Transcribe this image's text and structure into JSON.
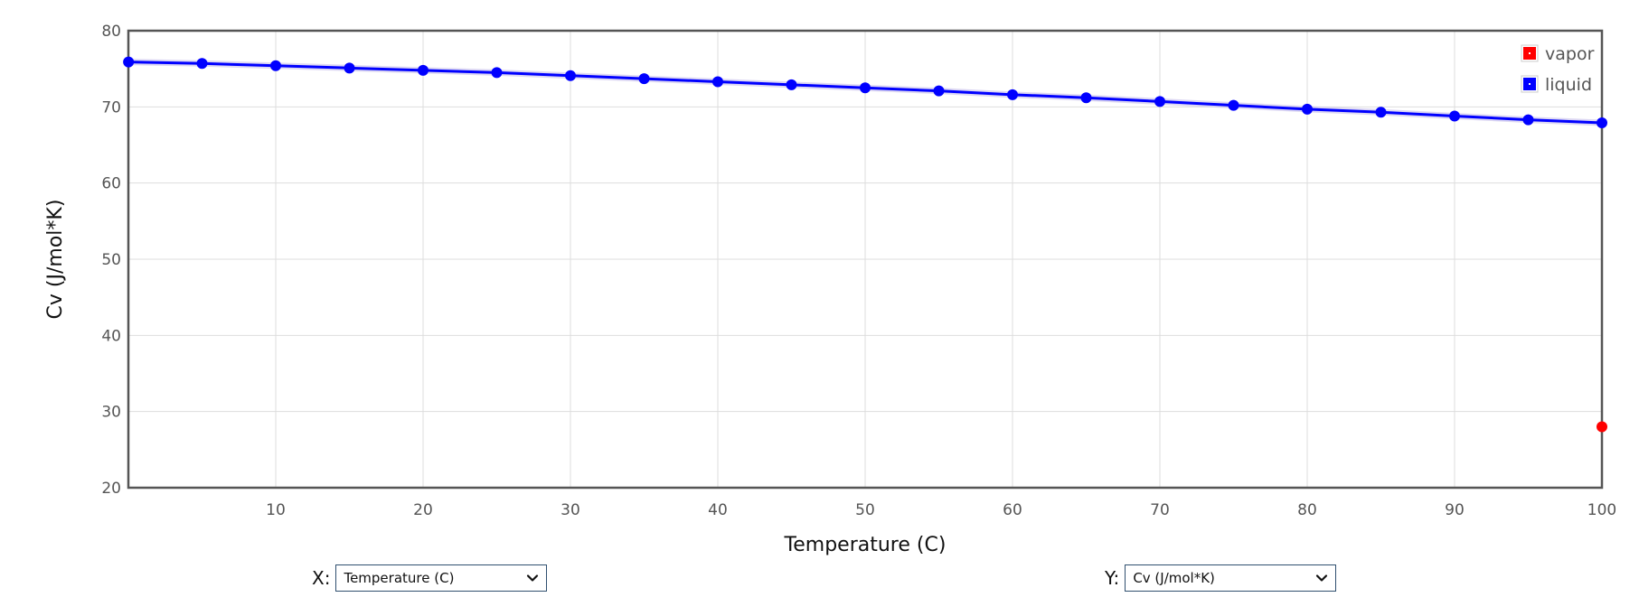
{
  "chart_data": {
    "type": "line",
    "xlabel": "Temperature (C)",
    "ylabel": "Cv (J/mol*K)",
    "xlim": [
      0,
      100
    ],
    "ylim": [
      20,
      80
    ],
    "x_ticks": [
      10,
      20,
      30,
      40,
      50,
      60,
      70,
      80,
      90,
      100
    ],
    "y_ticks": [
      20,
      30,
      40,
      50,
      60,
      70,
      80
    ],
    "grid": true,
    "legend_position": "top-right",
    "series": [
      {
        "name": "vapor",
        "color": "#ff0000",
        "mode": "markers",
        "x": [
          100
        ],
        "y": [
          28.0
        ]
      },
      {
        "name": "liquid",
        "color": "#0000ff",
        "mode": "lines+markers",
        "x": [
          0.01,
          5,
          10,
          15,
          20,
          25,
          30,
          35,
          40,
          45,
          50,
          55,
          60,
          65,
          70,
          75,
          80,
          85,
          90,
          95,
          100
        ],
        "y": [
          75.9,
          75.7,
          75.4,
          75.1,
          74.8,
          74.5,
          74.1,
          73.7,
          73.3,
          72.9,
          72.5,
          72.1,
          71.6,
          71.2,
          70.7,
          70.2,
          69.7,
          69.3,
          68.8,
          68.3,
          67.9
        ]
      }
    ]
  },
  "controls": {
    "x_label": "X:",
    "x_selected": "Temperature (C)",
    "y_label": "Y:",
    "y_selected": "Cv (J/mol*K)"
  },
  "icons": {
    "dropdown": "chevron-down-icon"
  }
}
